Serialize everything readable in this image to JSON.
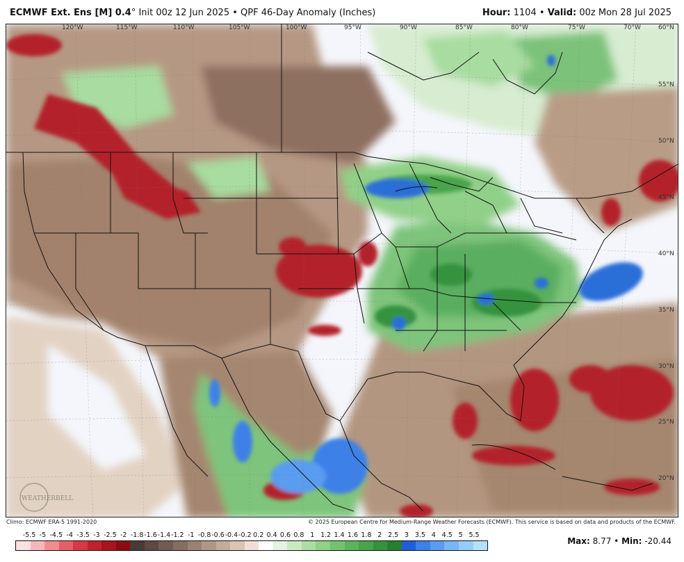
{
  "header": {
    "model": "ECMWF Ext. Ens [M] 0.4",
    "degree_mark": "°",
    "init": "Init 00z 12 Jun 2025",
    "separator": "•",
    "product": "QPF 46-Day Anomaly (Inches)",
    "hour_label": "Hour:",
    "hour_value": "1104",
    "valid_label": "Valid:",
    "valid_value": "00z Mon 28 Jul 2025"
  },
  "map": {
    "lon_labels": [
      "120°W",
      "115°W",
      "110°W",
      "105°W",
      "100°W",
      "95°W",
      "90°W",
      "85°W",
      "80°W",
      "75°W",
      "70°W",
      "60°N"
    ],
    "lat_labels": [
      "55°N",
      "50°N",
      "45°N",
      "40°N",
      "35°N",
      "30°N",
      "25°N",
      "20°N"
    ],
    "watermark_text": "WEATHERBELL",
    "colors": {
      "dry_strong": "#b3202a",
      "dry_mid": "#8a6a5a",
      "dry_light": "#c8a88e",
      "neutral": "#f4f6fb",
      "wet_light": "#a8dca0",
      "wet_mid": "#4caa5a",
      "wet_strong": "#2a6ed8",
      "border": "#111111"
    }
  },
  "footer": {
    "climo": "Climo: ECMWF ERA-5 1991-2020",
    "copyright": "© 2025 European Centre for Medium-Range Weather Forecasts (ECMWF). This service is based on data and products of the ECMWF."
  },
  "colorbar": {
    "ticks": [
      "-5.5",
      "-5",
      "-4.5",
      "-4",
      "-3.5",
      "-3",
      "-2.5",
      "-2",
      "-1.8",
      "-1.6",
      "-1.4",
      "-1.2",
      "-1",
      "-0.8",
      "-0.6",
      "-0.4",
      "-0.2",
      "0.2",
      "0.4",
      "0.6",
      "0.8",
      "1",
      "1.2",
      "1.4",
      "1.6",
      "1.8",
      "2",
      "2.5",
      "3",
      "3.5",
      "4",
      "4.5",
      "5",
      "5.5"
    ],
    "colors": [
      "#fde0e0",
      "#f7b8bc",
      "#f08c92",
      "#e46068",
      "#d43a44",
      "#c0222c",
      "#a8141e",
      "#8c0c14",
      "#4a3a36",
      "#5e4a44",
      "#725c52",
      "#876e62",
      "#9c8274",
      "#b09686",
      "#c5ac9a",
      "#dac4b2",
      "#efdfd2",
      "#ffffff",
      "#e4f4e0",
      "#c8eac2",
      "#acdea4",
      "#90d088",
      "#74c270",
      "#5cb45c",
      "#48a44c",
      "#36923e",
      "#2a7e34",
      "#1e5fd8",
      "#3c80e8",
      "#5a9cf0",
      "#78b6f4",
      "#96ccf8",
      "#b4e0fa"
    ]
  },
  "stats": {
    "max_label": "Max:",
    "max_value": "8.77",
    "separator": "•",
    "min_label": "Min:",
    "min_value": "-20.44"
  }
}
